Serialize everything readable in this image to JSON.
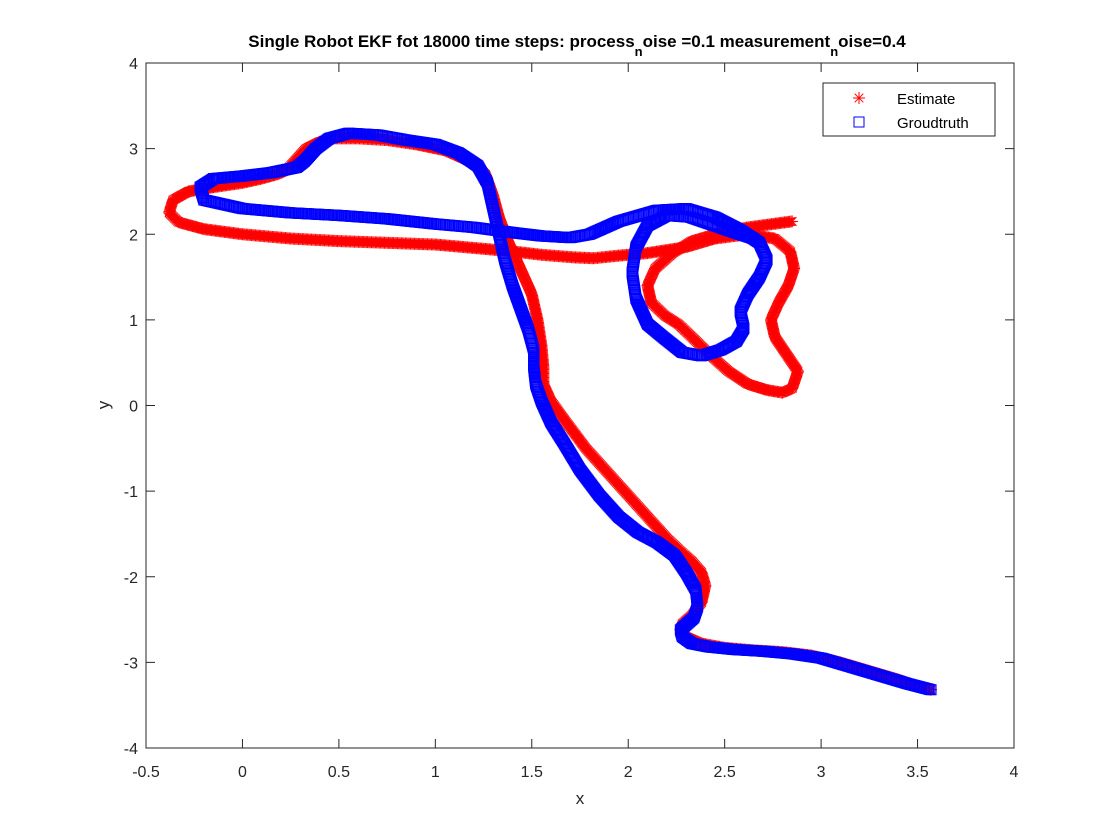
{
  "chart_data": {
    "type": "scatter",
    "title": {
      "t1": "Single Robot EKF fot 18000 time steps: process",
      "s1": "n",
      "t2": "oise =0.1 measurement",
      "s2": "n",
      "t3": "oise=0.4"
    },
    "xlabel": "x",
    "ylabel": "y",
    "xlim": [
      -0.5,
      4
    ],
    "ylim": [
      -4,
      4
    ],
    "xticks": [
      -0.5,
      0,
      0.5,
      1,
      1.5,
      2,
      2.5,
      3,
      3.5,
      4
    ],
    "yticks": [
      -4,
      -3,
      -2,
      -1,
      0,
      1,
      2,
      3,
      4
    ],
    "grid": false,
    "legend_position": "top-right",
    "series": [
      {
        "name": "Estimate",
        "marker": "asterisk",
        "color": "#ff0000",
        "x": [
          2.85,
          2.75,
          2.62,
          2.48,
          2.33,
          2.23,
          2.14,
          2.1,
          2.12,
          2.19,
          2.26,
          2.33,
          2.42,
          2.52,
          2.62,
          2.72,
          2.8,
          2.85,
          2.88,
          2.82,
          2.76,
          2.74,
          2.78,
          2.83,
          2.86,
          2.84,
          2.76,
          2.62,
          2.45,
          2.3,
          2.1,
          1.95,
          1.82,
          1.72,
          1.55,
          1.4,
          1.2,
          1.0,
          0.75,
          0.5,
          0.25,
          0.0,
          -0.2,
          -0.33,
          -0.38,
          -0.36,
          -0.28,
          -0.15,
          0.0,
          0.1,
          0.18,
          0.23,
          0.25,
          0.29,
          0.33,
          0.4,
          0.48,
          0.6,
          0.75,
          0.9,
          1.05,
          1.18,
          1.26,
          1.3,
          1.33,
          1.38,
          1.44,
          1.5,
          1.53,
          1.55,
          1.56,
          1.56,
          1.6,
          1.68,
          1.78,
          1.9,
          2.02,
          2.12,
          2.2,
          2.27,
          2.33,
          2.38,
          2.4,
          2.38,
          2.33,
          2.28,
          2.27,
          2.3,
          2.38,
          2.5,
          2.65,
          2.8,
          2.95,
          3.1,
          3.25,
          3.4,
          3.5,
          3.57
        ],
        "y": [
          2.15,
          2.12,
          2.08,
          2.02,
          1.92,
          1.78,
          1.6,
          1.4,
          1.2,
          1.05,
          0.95,
          0.8,
          0.6,
          0.4,
          0.25,
          0.18,
          0.15,
          0.2,
          0.4,
          0.6,
          0.8,
          1.0,
          1.2,
          1.4,
          1.6,
          1.8,
          1.95,
          2.0,
          1.95,
          1.85,
          1.78,
          1.75,
          1.72,
          1.73,
          1.76,
          1.8,
          1.84,
          1.88,
          1.9,
          1.92,
          1.95,
          2.0,
          2.06,
          2.14,
          2.25,
          2.4,
          2.5,
          2.55,
          2.6,
          2.65,
          2.7,
          2.75,
          2.8,
          2.9,
          3.0,
          3.08,
          3.12,
          3.12,
          3.1,
          3.05,
          2.98,
          2.85,
          2.7,
          2.45,
          2.2,
          1.9,
          1.6,
          1.3,
          1.0,
          0.7,
          0.45,
          0.25,
          0.05,
          -0.2,
          -0.5,
          -0.8,
          -1.1,
          -1.35,
          -1.55,
          -1.7,
          -1.82,
          -1.95,
          -2.1,
          -2.3,
          -2.45,
          -2.55,
          -2.62,
          -2.7,
          -2.78,
          -2.83,
          -2.86,
          -2.88,
          -2.92,
          -3.0,
          -3.1,
          -3.2,
          -3.28,
          -3.32
        ]
      },
      {
        "name": "Groudtruth",
        "marker": "square",
        "color": "#0000ff",
        "x": [
          2.65,
          2.58,
          2.45,
          2.32,
          2.2,
          2.1,
          2.04,
          2.02,
          2.04,
          2.1,
          2.18,
          2.28,
          2.38,
          2.48,
          2.56,
          2.6,
          2.58,
          2.62,
          2.68,
          2.72,
          2.68,
          2.58,
          2.45,
          2.3,
          2.15,
          1.95,
          1.8,
          1.7,
          1.55,
          1.4,
          1.2,
          1.0,
          0.75,
          0.5,
          0.25,
          0.0,
          -0.2,
          -0.22,
          -0.15,
          0.0,
          0.15,
          0.28,
          0.32,
          0.38,
          0.45,
          0.55,
          0.7,
          0.85,
          1.0,
          1.12,
          1.22,
          1.27,
          1.3,
          1.33,
          1.36,
          1.4,
          1.44,
          1.48,
          1.51,
          1.51,
          1.52,
          1.55,
          1.6,
          1.67,
          1.75,
          1.85,
          1.95,
          2.05,
          2.15,
          2.24,
          2.3,
          2.35,
          2.36,
          2.34,
          2.3,
          2.27,
          2.28,
          2.33,
          2.42,
          2.55,
          2.7,
          2.85,
          3.0,
          3.15,
          3.3,
          3.45,
          3.57
        ],
        "y": [
          1.95,
          2.0,
          2.1,
          2.2,
          2.22,
          2.1,
          1.85,
          1.55,
          1.25,
          0.95,
          0.8,
          0.62,
          0.58,
          0.65,
          0.75,
          0.9,
          1.1,
          1.3,
          1.5,
          1.7,
          1.9,
          2.05,
          2.2,
          2.3,
          2.28,
          2.15,
          2.0,
          1.96,
          1.98,
          2.02,
          2.08,
          2.12,
          2.18,
          2.22,
          2.25,
          2.3,
          2.4,
          2.55,
          2.65,
          2.68,
          2.72,
          2.78,
          2.85,
          3.0,
          3.12,
          3.18,
          3.16,
          3.1,
          3.05,
          2.95,
          2.8,
          2.6,
          2.3,
          2.0,
          1.7,
          1.4,
          1.15,
          0.9,
          0.65,
          0.45,
          0.25,
          0.05,
          -0.2,
          -0.45,
          -0.75,
          -1.05,
          -1.3,
          -1.48,
          -1.6,
          -1.75,
          -1.95,
          -2.15,
          -2.35,
          -2.48,
          -2.56,
          -2.62,
          -2.7,
          -2.78,
          -2.82,
          -2.85,
          -2.87,
          -2.9,
          -2.95,
          -3.05,
          -3.15,
          -3.25,
          -3.32
        ]
      }
    ]
  }
}
